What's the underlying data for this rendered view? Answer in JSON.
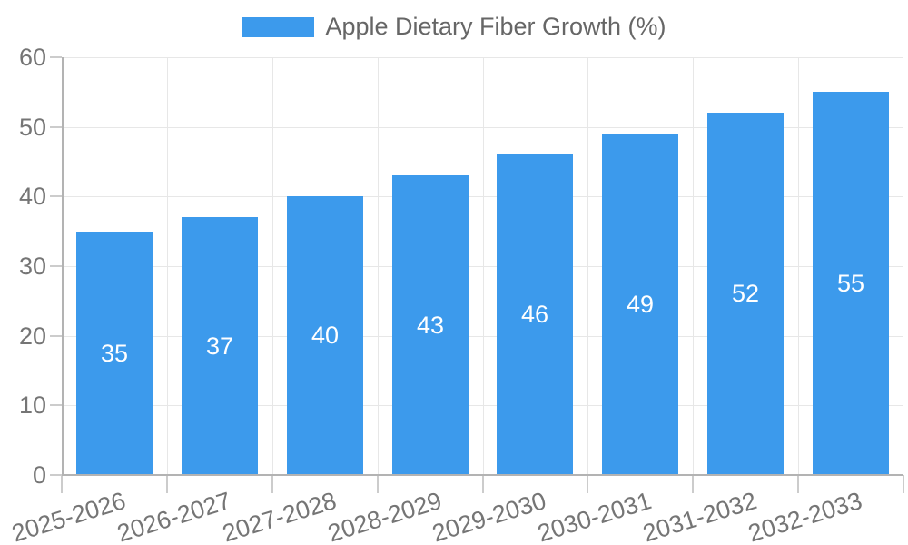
{
  "chart_data": {
    "type": "bar",
    "title": "Apple Dietary Fiber Growth (%)",
    "legend": {
      "label": "Apple Dietary Fiber Growth (%)",
      "position": "top"
    },
    "categories": [
      "2025-2026",
      "2026-2027",
      "2027-2028",
      "2028-2029",
      "2029-2030",
      "2030-2031",
      "2031-2032",
      "2032-2033"
    ],
    "values": [
      35,
      37,
      40,
      43,
      46,
      49,
      52,
      55
    ],
    "xlabel": "",
    "ylabel": "",
    "ylim": [
      0,
      60
    ],
    "yticks": [
      0,
      10,
      20,
      30,
      40,
      50,
      60
    ],
    "grid": true,
    "bar_label_position": "center",
    "colors": {
      "bar": "#3c9aec",
      "bar_label": "#ffffff",
      "grid": "#e7e7e7",
      "axis": "#b3b3b3",
      "tick": "#cccccc",
      "tick_text": "#757575",
      "legend_text": "#666666",
      "background": "#ffffff"
    }
  }
}
